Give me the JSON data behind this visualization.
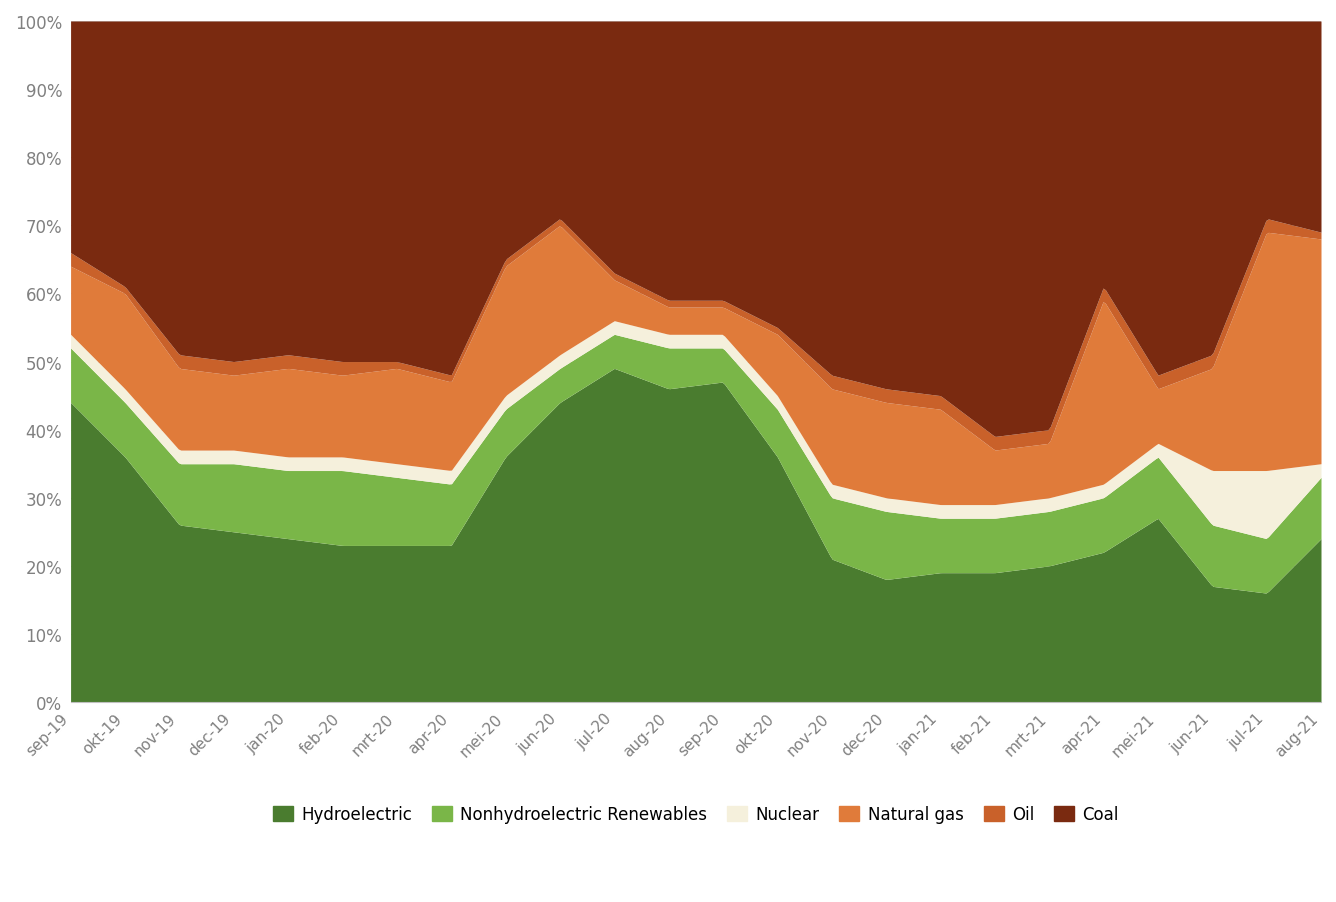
{
  "x_labels": [
    "sep-19",
    "okt-19",
    "nov-19",
    "dec-19",
    "jan-20",
    "feb-20",
    "mrt-20",
    "apr-20",
    "mei-20",
    "jun-20",
    "jul-20",
    "aug-20",
    "sep-20",
    "okt-20",
    "nov-20",
    "dec-20",
    "jan-21",
    "feb-21",
    "mrt-21",
    "apr-21",
    "mei-21",
    "jun-21",
    "jul-21",
    "aug-21"
  ],
  "hydroelectric": [
    44,
    36,
    26,
    25,
    24,
    23,
    23,
    23,
    36,
    44,
    49,
    46,
    47,
    36,
    21,
    18,
    19,
    19,
    20,
    22,
    27,
    17,
    16,
    24
  ],
  "nonhydro_renewables": [
    8,
    8,
    9,
    10,
    10,
    11,
    10,
    9,
    7,
    5,
    5,
    6,
    5,
    7,
    9,
    10,
    8,
    8,
    8,
    8,
    9,
    9,
    8,
    9
  ],
  "nuclear": [
    2,
    2,
    2,
    2,
    2,
    2,
    2,
    2,
    2,
    2,
    2,
    2,
    2,
    2,
    2,
    2,
    2,
    2,
    2,
    2,
    2,
    8,
    10,
    2
  ],
  "natural_gas": [
    10,
    14,
    12,
    11,
    13,
    12,
    14,
    13,
    19,
    19,
    6,
    4,
    4,
    9,
    14,
    14,
    14,
    8,
    8,
    27,
    8,
    15,
    35,
    33
  ],
  "oil": [
    2,
    1,
    2,
    2,
    2,
    2,
    1,
    1,
    1,
    1,
    1,
    1,
    1,
    1,
    2,
    2,
    2,
    2,
    2,
    2,
    2,
    2,
    2,
    1
  ],
  "coal": [
    34,
    39,
    49,
    50,
    49,
    50,
    50,
    52,
    35,
    29,
    37,
    41,
    41,
    45,
    52,
    54,
    55,
    61,
    60,
    39,
    52,
    49,
    29,
    31
  ],
  "colors": {
    "hydroelectric": "#4a7c2f",
    "nonhydro_renewables": "#7ab648",
    "nuclear": "#f5f0dc",
    "natural_gas": "#e07b3a",
    "oil": "#c9612a",
    "coal": "#7a2a10"
  },
  "legend_labels": [
    "Hydroelectric",
    "Nonhydroelectric Renewables",
    "Nuclear",
    "Natural gas",
    "Oil",
    "Coal"
  ],
  "background_color": "#ffffff",
  "ylabel_ticks": [
    "0%",
    "10%",
    "20%",
    "30%",
    "40%",
    "50%",
    "60%",
    "70%",
    "80%",
    "90%",
    "100%"
  ],
  "grid_color": "#d0d0d0",
  "tick_color": "#808080",
  "spine_color": "#c0c0c0"
}
